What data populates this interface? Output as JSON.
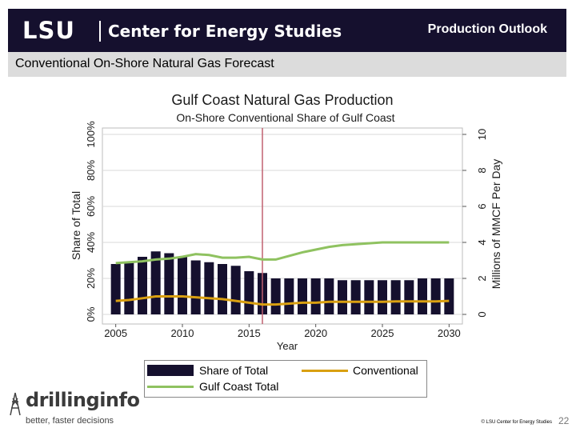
{
  "header": {
    "logo_text": "LSU",
    "org_name": "Center for Energy Studies",
    "section_title": "Production Outlook"
  },
  "subtitle": "Conventional On-Shore Natural Gas Forecast",
  "chart_data": {
    "type": "bar+line",
    "title": "Gulf Coast Natural Gas Production",
    "subtitle": "On-Shore Conventional Share of Gulf Coast",
    "xlabel": "Year",
    "ylabel_left": "Share of Total",
    "ylabel_right": "Millions of MMCF Per Day",
    "xlim": [
      2004,
      2031
    ],
    "ylim_left": [
      0,
      100
    ],
    "ylim_right": [
      0,
      10
    ],
    "x_ticks": [
      "2005",
      "2010",
      "2015",
      "2020",
      "2025",
      "2030"
    ],
    "y_left_ticks": [
      "0%",
      "20%",
      "40%",
      "60%",
      "80%",
      "100%"
    ],
    "y_right_ticks": [
      "0",
      "2",
      "4",
      "6",
      "8",
      "10"
    ],
    "vertical_marker_year": 2016,
    "years": [
      2005,
      2006,
      2007,
      2008,
      2009,
      2010,
      2011,
      2012,
      2013,
      2014,
      2015,
      2016,
      2017,
      2018,
      2019,
      2020,
      2021,
      2022,
      2023,
      2024,
      2025,
      2026,
      2027,
      2028,
      2029,
      2030
    ],
    "share_of_total": [
      28,
      29,
      32,
      35,
      34,
      32,
      30,
      29,
      28,
      27,
      24,
      23,
      20,
      20,
      20,
      20,
      20,
      19,
      19,
      19,
      19,
      19,
      19,
      20,
      20,
      20
    ],
    "conventional": [
      0.75,
      0.8,
      0.9,
      1.0,
      1.0,
      1.0,
      0.95,
      0.9,
      0.85,
      0.75,
      0.65,
      0.55,
      0.55,
      0.6,
      0.65,
      0.65,
      0.7,
      0.7,
      0.7,
      0.7,
      0.7,
      0.72,
      0.72,
      0.72,
      0.72,
      0.75
    ],
    "gulf_coast_total": [
      2.85,
      2.9,
      2.95,
      3.05,
      3.1,
      3.2,
      3.35,
      3.3,
      3.15,
      3.15,
      3.2,
      3.05,
      3.05,
      3.25,
      3.45,
      3.6,
      3.75,
      3.85,
      3.9,
      3.95,
      4.0,
      4.0,
      4.0,
      4.0,
      4.0,
      4.0
    ],
    "legend": [
      {
        "name": "Share of Total",
        "kind": "bar",
        "color": "#15102e"
      },
      {
        "name": "Conventional",
        "kind": "line",
        "color": "#d9a011"
      },
      {
        "name": "Gulf Coast Total",
        "kind": "line",
        "color": "#8fc260"
      }
    ],
    "colors": {
      "bar": "#15102e",
      "conventional": "#d9a011",
      "total": "#8fc260",
      "marker": "#c06070",
      "grid": "#d8d8d8"
    }
  },
  "footer": {
    "brand": "drillinginfo",
    "tagline": "better, faster decisions",
    "copyright": "© LSU Center for Energy Studies",
    "page_number": "22"
  }
}
